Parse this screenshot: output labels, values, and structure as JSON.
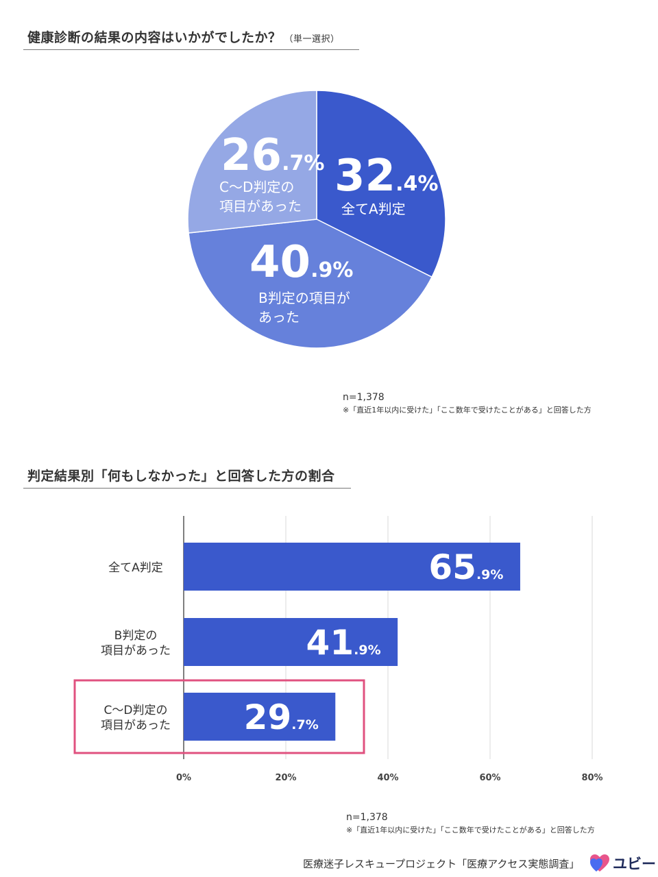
{
  "pie_section": {
    "title": "健康診断の結果の内容はいかがでしたか？",
    "subtitle": "（単一選択）",
    "note_n": "n=1,378",
    "note_caption": "※「直近1年以内に受けた」「ここ数年で受けたことがある」と回答した方"
  },
  "bar_section": {
    "title": "判定結果別「何もしなかった」と回答した方の割合",
    "note_n": "n=1,378",
    "note_caption": "※「直近1年以内に受けた」「ここ数年で受けたことがある」と回答した方"
  },
  "footer": {
    "source": "医療迷子レスキュープロジェクト「医療アクセス実態調査」",
    "logo_text": "ユビー"
  },
  "colors": {
    "slice_a": "#3a59cc",
    "slice_b": "#6681db",
    "slice_cd": "#95a8e5",
    "bar": "#3a59cc",
    "highlight": "#e0517f",
    "logo_heart_pink": "#e8558b",
    "logo_heart_blue": "#4a6cf0"
  },
  "chart_data": [
    {
      "type": "pie",
      "slices": [
        {
          "label_lines": [
            "全てA判定"
          ],
          "int": "32",
          "dec": ".4%",
          "value": 32.4
        },
        {
          "label_lines": [
            "B判定の項目が",
            "あった"
          ],
          "int": "40",
          "dec": ".9%",
          "value": 40.9
        },
        {
          "label_lines": [
            "C～D判定の",
            "項目があった"
          ],
          "int": "26",
          "dec": ".7%",
          "value": 26.7
        }
      ]
    },
    {
      "type": "bar",
      "orientation": "horizontal",
      "categories": [
        {
          "lines": [
            "全てA判定"
          ],
          "int": "65",
          "dec": ".9%",
          "value": 65.9
        },
        {
          "lines": [
            "B判定の",
            "項目があった"
          ],
          "int": "41",
          "dec": ".9%",
          "value": 41.9
        },
        {
          "lines": [
            "C～D判定の",
            "項目があった"
          ],
          "int": "29",
          "dec": ".7%",
          "value": 29.7
        }
      ],
      "xlim": [
        0,
        80
      ],
      "ticks": [
        "0%",
        "20%",
        "40%",
        "60%",
        "80%"
      ],
      "grid": true,
      "highlighted_category": 2
    }
  ]
}
